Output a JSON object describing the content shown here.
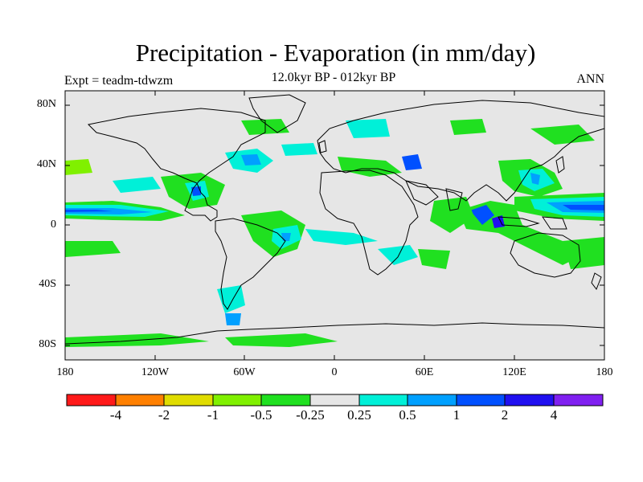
{
  "title": "Precipitation - Evaporation (in mm/day)",
  "subtitle": "12.0kyr BP - 012kyr BP",
  "experiment": "Expt = teadm-tdwzm",
  "season": "ANN",
  "axes": {
    "y_ticks": [
      "80N",
      "40N",
      "0",
      "40S",
      "80S"
    ],
    "x_ticks": [
      "180",
      "120W",
      "60W",
      "0",
      "60E",
      "120E",
      "180"
    ]
  },
  "colorbar": {
    "colors": [
      "#ff1a1a",
      "#ff8000",
      "#e0dc00",
      "#80f000",
      "#20e020",
      "#e6e6e6",
      "#00f0d8",
      "#00a0ff",
      "#0050ff",
      "#2010f0",
      "#8020f0"
    ],
    "labels": [
      "-4",
      "-2",
      "-1",
      "-0.5",
      "-0.25",
      "0.25",
      "0.5",
      "1",
      "2",
      "4"
    ]
  },
  "colors": {
    "background": "#e6e6e6",
    "coast": "#000000"
  }
}
